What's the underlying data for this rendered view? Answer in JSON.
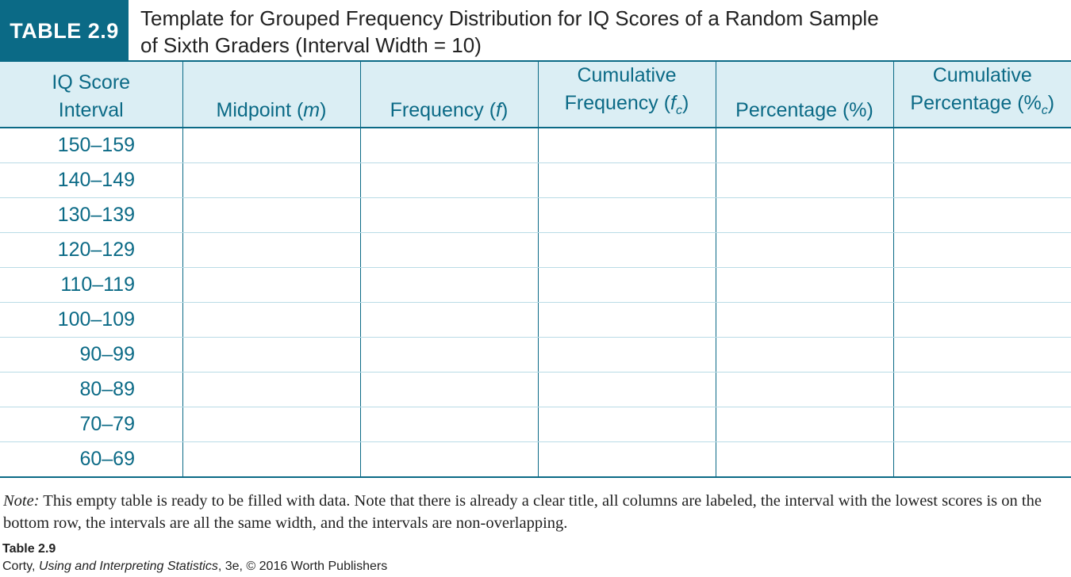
{
  "title": {
    "badge": "TABLE 2.9",
    "line1": "Template for Grouped Frequency Distribution for IQ Scores of a Random Sample",
    "line2": "of Sixth Graders (Interval Width = 10)"
  },
  "headers": [
    {
      "line1": "IQ Score",
      "line2": "Interval"
    },
    {
      "line1": "",
      "line2a": "Midpoint (",
      "var": "m",
      "line2b": ")"
    },
    {
      "line1": "",
      "line2a": "Frequency (",
      "var": "f",
      "line2b": ")"
    },
    {
      "line1": "Cumulative",
      "line2a": "Frequency (",
      "var": "f",
      "sub": "c",
      "line2b": ")"
    },
    {
      "line1": "",
      "line2": "Percentage (%)"
    },
    {
      "line1": "Cumulative",
      "line2a": "Percentage (%",
      "sub": "c",
      "line2b": ")"
    }
  ],
  "rows": [
    "150–159",
    "140–149",
    "130–139",
    "120–129",
    "110–119",
    "100–109",
    "90–99",
    "80–89",
    "70–79",
    "60–69"
  ],
  "note": {
    "label": "Note:",
    "text": " This empty table is ready to be filled with data. Note that there is already a clear title, all columns are labeled, the interval with the lowest scores is on the bottom row, the intervals are all the same width, and the intervals are non-overlapping."
  },
  "caption": "Table 2.9",
  "credit": {
    "author": "Corty, ",
    "book": "Using and Interpreting Statistics",
    "rest": ", 3e, © 2016 Worth Publishers"
  },
  "colors": {
    "accent": "#0b6a86",
    "header_bg": "#dbeef4"
  }
}
